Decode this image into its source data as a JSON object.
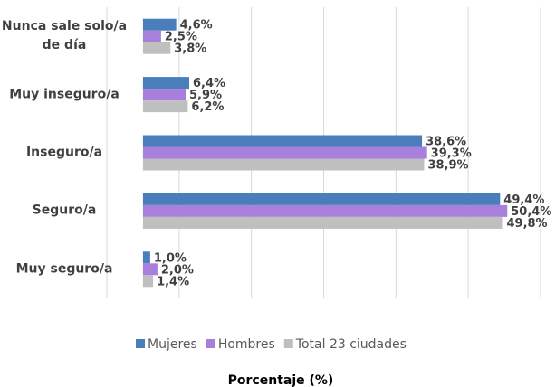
{
  "chart_data": {
    "type": "bar",
    "orientation": "horizontal",
    "categories": [
      "Nunca sale solo/a de día",
      "Muy inseguro/a",
      "Inseguro/a",
      "Seguro/a",
      "Muy seguro/a"
    ],
    "series": [
      {
        "name": "Mujeres",
        "color": "#4a7ebb",
        "values": [
          4.6,
          6.4,
          38.6,
          49.4,
          1.0
        ],
        "value_labels": [
          "4,6%",
          "6,4%",
          "38,6%",
          "49,4%",
          "1,0%"
        ]
      },
      {
        "name": "Hombres",
        "color": "#a87fdb",
        "values": [
          2.5,
          5.9,
          39.3,
          50.4,
          2.0
        ],
        "value_labels": [
          "2,5%",
          "5,9%",
          "39,3%",
          "50,4%",
          "2,0%"
        ]
      },
      {
        "name": "Total 23 ciudades",
        "color": "#bfbfbf",
        "values": [
          3.8,
          6.2,
          38.9,
          49.8,
          1.4
        ],
        "value_labels": [
          "3,8%",
          "6,2%",
          "38,9%",
          "49,8%",
          "1,4%"
        ]
      }
    ],
    "xlabel": "Porcentaje (%)",
    "xlim": [
      -5,
      55
    ],
    "xticks": [
      -5,
      5,
      15,
      25,
      35,
      45,
      55
    ],
    "grid": true,
    "legend": "bottom"
  }
}
